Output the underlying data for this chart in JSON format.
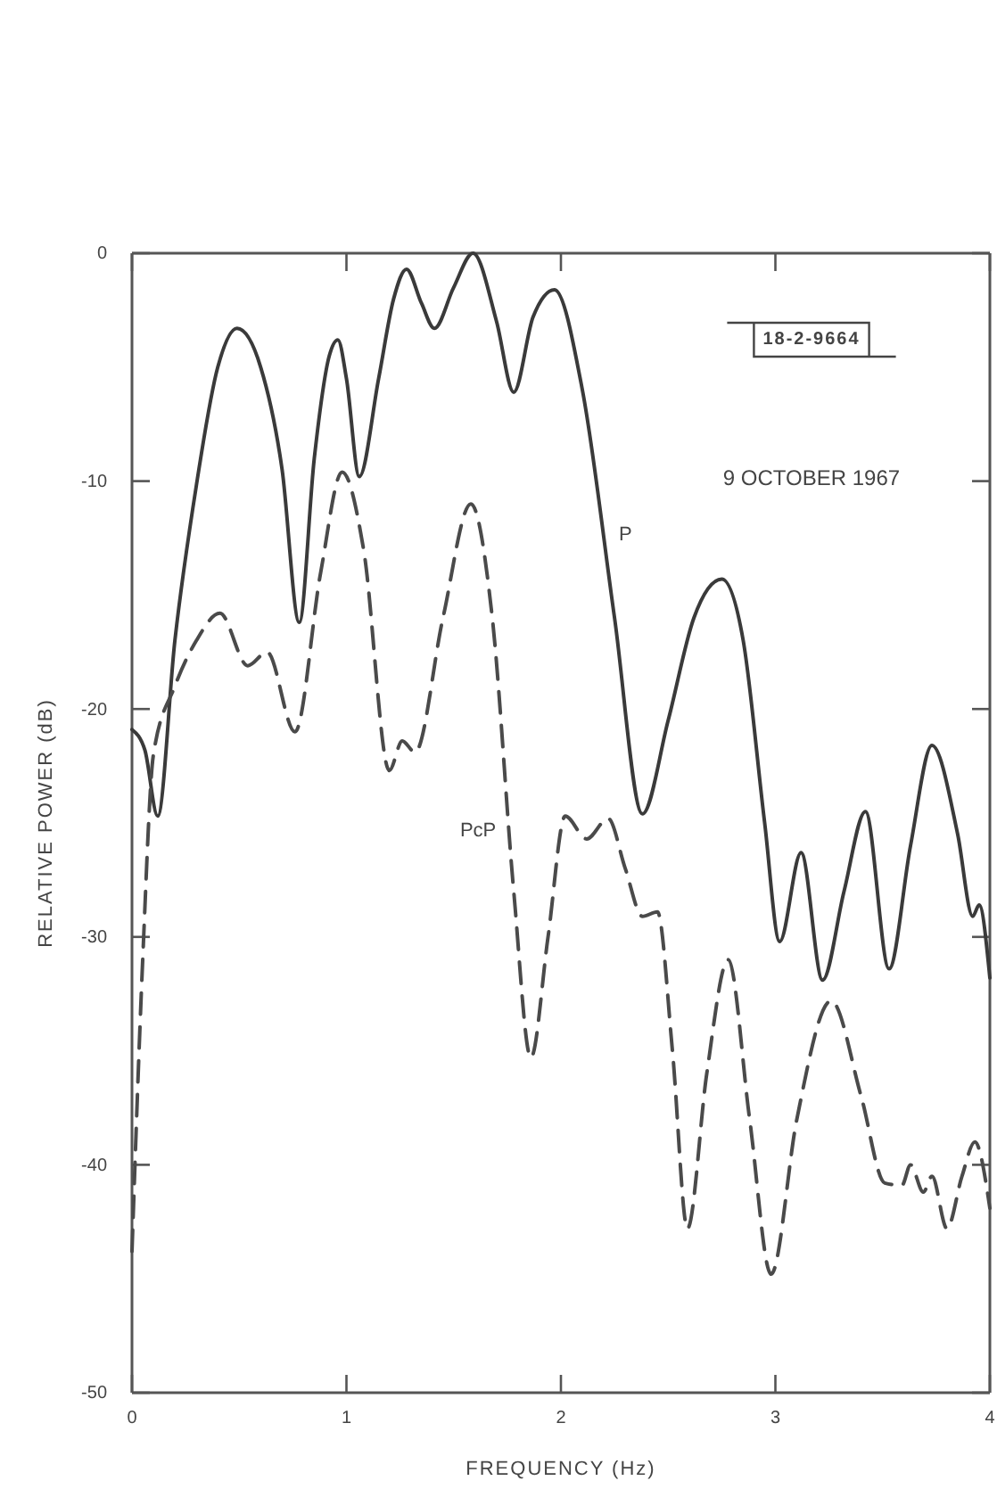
{
  "chart_data": {
    "type": "line",
    "xlabel": "FREQUENCY (Hz)",
    "ylabel": "RELATIVE POWER (dB)",
    "xlim": [
      0,
      4
    ],
    "ylim": [
      -50,
      0
    ],
    "xticks": [
      0,
      1,
      2,
      3,
      4
    ],
    "yticks": [
      -50,
      -40,
      -30,
      -20,
      -10,
      0
    ],
    "grid": false,
    "legend": false,
    "marker": "none",
    "annotations": [
      "18-2-9664",
      "9 OCTOBER 1967"
    ],
    "series": [
      {
        "name": "P",
        "color": "#3a3a3a",
        "line_style": "solid",
        "x": [
          0,
          0.06,
          0.12,
          0.2,
          0.3,
          0.4,
          0.49,
          0.6,
          0.7,
          0.78,
          0.85,
          0.92,
          0.96,
          1.0,
          1.06,
          1.15,
          1.22,
          1.28,
          1.35,
          1.41,
          1.5,
          1.59,
          1.7,
          1.78,
          1.87,
          1.97,
          2.1,
          2.25,
          2.38,
          2.5,
          2.62,
          2.75,
          2.85,
          2.95,
          3.02,
          3.12,
          3.22,
          3.32,
          3.42,
          3.53,
          3.63,
          3.73,
          3.85,
          3.92,
          3.95,
          4.0
        ],
        "values": [
          -20.9,
          -21.8,
          -24.7,
          -17,
          -10.2,
          -5,
          -3.3,
          -5,
          -9.5,
          -16.2,
          -9,
          -4.5,
          -3.8,
          -5.5,
          -9.8,
          -5.5,
          -2,
          -0.7,
          -2.2,
          -3.3,
          -1.5,
          0,
          -3,
          -6.1,
          -2.8,
          -1.6,
          -6,
          -16,
          -24.6,
          -20.5,
          -16,
          -14.3,
          -17,
          -25,
          -30.2,
          -26.3,
          -31.9,
          -28,
          -24.5,
          -31.4,
          -26,
          -21.6,
          -25.5,
          -29.1,
          -28.6,
          -31.8
        ]
      },
      {
        "name": "PcP",
        "color": "#4a4a4a",
        "line_style": "dashed",
        "x": [
          0,
          0.05,
          0.1,
          0.2,
          0.3,
          0.41,
          0.54,
          0.63,
          0.76,
          0.88,
          0.98,
          1.08,
          1.2,
          1.26,
          1.32,
          1.45,
          1.58,
          1.68,
          1.78,
          1.86,
          1.94,
          2.02,
          2.12,
          2.22,
          2.3,
          2.38,
          2.45,
          2.52,
          2.59,
          2.68,
          2.78,
          2.88,
          2.98,
          3.1,
          3.26,
          3.4,
          3.51,
          3.59,
          3.63,
          3.69,
          3.73,
          3.8,
          3.87,
          3.93,
          4.0
        ],
        "values": [
          -43.8,
          -31,
          -22,
          -19,
          -17,
          -15.8,
          -18.1,
          -17.5,
          -21,
          -14,
          -9.6,
          -13,
          -22.7,
          -21.4,
          -21.9,
          -16,
          -11,
          -16,
          -28,
          -35.3,
          -30,
          -24.7,
          -25.7,
          -24.8,
          -27,
          -29.1,
          -28.9,
          -35,
          -42.8,
          -36,
          -31,
          -38,
          -44.8,
          -38,
          -32.8,
          -37,
          -40.8,
          -40.9,
          -40,
          -41.2,
          -40.5,
          -42.8,
          -40.5,
          -39,
          -41.9
        ]
      }
    ]
  }
}
